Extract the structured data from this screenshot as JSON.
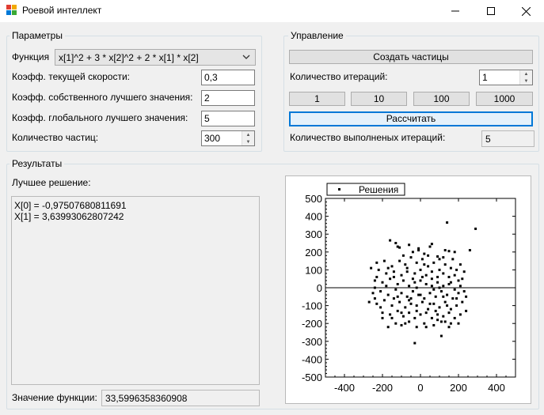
{
  "window": {
    "title": "Роевой интеллект",
    "minimize_icon": "minimize-icon",
    "maximize_icon": "maximize-icon",
    "close_icon": "close-icon"
  },
  "params": {
    "legend": "Параметры",
    "function_label": "Функция",
    "function_value": "x[1]^2 + 3 * x[2]^2 + 2 * x[1] * x[2]",
    "current_speed_label": "Коэфф. текущей скорости:",
    "current_speed_value": "0,3",
    "own_best_label": "Коэфф. собственного лучшего значения:",
    "own_best_value": "2",
    "global_best_label": "Коэфф. глобального лучшего значения:",
    "global_best_value": "5",
    "particles_label": "Количество частиц:",
    "particles_value": "300"
  },
  "control": {
    "legend": "Управление",
    "create_button": "Создать частицы",
    "iterations_label": "Количество итераций:",
    "iterations_value": "1",
    "step_buttons": [
      "1",
      "10",
      "100",
      "1000"
    ],
    "calculate_button": "Рассчитать",
    "done_label": "Количество выполненых итераций:",
    "done_value": "5"
  },
  "results": {
    "legend": "Результаты",
    "best_label": "Лучшее решение:",
    "best_lines": [
      "X[0] = -0,97507680811691",
      "X[1] = 3,63993062807242"
    ],
    "fvalue_label": "Значение функции:",
    "fvalue": "33,5996358360908"
  },
  "chart_data": {
    "type": "scatter",
    "series": [
      {
        "name": "Решения",
        "marker": "square",
        "color": "#000000"
      }
    ],
    "xlim": [
      -500,
      500
    ],
    "ylim": [
      -500,
      500
    ],
    "x_ticks": [
      -400,
      -200,
      0,
      200,
      400
    ],
    "y_ticks": [
      500,
      400,
      300,
      200,
      100,
      0,
      -100,
      -200,
      -300,
      -400,
      -500
    ],
    "x_tick_labels": [
      "-400",
      "-200",
      "0",
      "200",
      "400"
    ],
    "y_tick_labels": [
      "500",
      "400",
      "300",
      "200",
      "100",
      "0",
      "-100",
      "-200",
      "-300",
      "-400",
      "-500"
    ],
    "zero_line": true,
    "grid": false,
    "legend_position": "top-left",
    "points": [
      [
        290,
        330
      ],
      [
        140,
        365
      ],
      [
        260,
        210
      ],
      [
        -160,
        265
      ],
      [
        -130,
        250
      ],
      [
        -110,
        225
      ],
      [
        -60,
        240
      ],
      [
        -40,
        200
      ],
      [
        60,
        245
      ],
      [
        -10,
        210
      ],
      [
        20,
        190
      ],
      [
        90,
        175
      ],
      [
        130,
        210
      ],
      [
        150,
        205
      ],
      [
        180,
        200
      ],
      [
        -230,
        140
      ],
      [
        -190,
        150
      ],
      [
        -150,
        120
      ],
      [
        -110,
        150
      ],
      [
        -80,
        130
      ],
      [
        -50,
        170
      ],
      [
        -20,
        140
      ],
      [
        10,
        160
      ],
      [
        40,
        120
      ],
      [
        70,
        140
      ],
      [
        100,
        160
      ],
      [
        130,
        130
      ],
      [
        160,
        110
      ],
      [
        190,
        100
      ],
      [
        210,
        130
      ],
      [
        230,
        90
      ],
      [
        -260,
        110
      ],
      [
        -220,
        100
      ],
      [
        -180,
        80
      ],
      [
        -140,
        90
      ],
      [
        -100,
        70
      ],
      [
        -70,
        90
      ],
      [
        -30,
        80
      ],
      [
        0,
        100
      ],
      [
        30,
        70
      ],
      [
        60,
        90
      ],
      [
        90,
        60
      ],
      [
        120,
        80
      ],
      [
        150,
        60
      ],
      [
        180,
        70
      ],
      [
        200,
        40
      ],
      [
        -240,
        40
      ],
      [
        -200,
        30
      ],
      [
        -160,
        50
      ],
      [
        -120,
        20
      ],
      [
        -90,
        40
      ],
      [
        -60,
        10
      ],
      [
        -30,
        30
      ],
      [
        0,
        40
      ],
      [
        30,
        20
      ],
      [
        60,
        10
      ],
      [
        90,
        30
      ],
      [
        120,
        10
      ],
      [
        150,
        20
      ],
      [
        180,
        -10
      ],
      [
        -250,
        -30
      ],
      [
        -210,
        -20
      ],
      [
        -170,
        -40
      ],
      [
        -130,
        -10
      ],
      [
        -100,
        -30
      ],
      [
        -70,
        -50
      ],
      [
        -40,
        -20
      ],
      [
        -10,
        -40
      ],
      [
        20,
        -60
      ],
      [
        50,
        -30
      ],
      [
        80,
        -50
      ],
      [
        110,
        -20
      ],
      [
        140,
        -40
      ],
      [
        170,
        -60
      ],
      [
        200,
        -30
      ],
      [
        -270,
        -80
      ],
      [
        -230,
        -90
      ],
      [
        -190,
        -70
      ],
      [
        -150,
        -100
      ],
      [
        -110,
        -80
      ],
      [
        -80,
        -110
      ],
      [
        -50,
        -90
      ],
      [
        -20,
        -100
      ],
      [
        10,
        -80
      ],
      [
        40,
        -120
      ],
      [
        70,
        -90
      ],
      [
        100,
        -110
      ],
      [
        130,
        -80
      ],
      [
        160,
        -120
      ],
      [
        190,
        -100
      ],
      [
        220,
        -80
      ],
      [
        -200,
        -140
      ],
      [
        -160,
        -150
      ],
      [
        -120,
        -130
      ],
      [
        -90,
        -160
      ],
      [
        -60,
        -140
      ],
      [
        -30,
        -170
      ],
      [
        0,
        -150
      ],
      [
        30,
        -140
      ],
      [
        60,
        -170
      ],
      [
        90,
        -150
      ],
      [
        120,
        -160
      ],
      [
        150,
        -140
      ],
      [
        180,
        -170
      ],
      [
        210,
        -150
      ],
      [
        -170,
        -220
      ],
      [
        -130,
        -200
      ],
      [
        -100,
        -210
      ],
      [
        -60,
        -190
      ],
      [
        -20,
        -220
      ],
      [
        20,
        -200
      ],
      [
        70,
        -210
      ],
      [
        110,
        -190
      ],
      [
        150,
        -220
      ],
      [
        200,
        -200
      ],
      [
        -30,
        -310
      ],
      [
        110,
        -270
      ],
      [
        -240,
        0
      ],
      [
        -210,
        -110
      ],
      [
        -140,
        60
      ],
      [
        -50,
        -60
      ],
      [
        10,
        60
      ],
      [
        70,
        -10
      ],
      [
        120,
        -50
      ],
      [
        160,
        30
      ],
      [
        220,
        50
      ],
      [
        240,
        -50
      ],
      [
        -120,
        -50
      ],
      [
        -170,
        110
      ],
      [
        40,
        180
      ],
      [
        100,
        100
      ],
      [
        -80,
        -200
      ],
      [
        130,
        -190
      ],
      [
        240,
        -130
      ],
      [
        -20,
        -130
      ],
      [
        80,
        -130
      ],
      [
        50,
        230
      ],
      [
        -90,
        180
      ],
      [
        170,
        160
      ],
      [
        -200,
        -170
      ],
      [
        -240,
        -60
      ],
      [
        210,
        10
      ],
      [
        0,
        -40
      ],
      [
        -40,
        50
      ],
      [
        160,
        -200
      ],
      [
        -120,
        230
      ],
      [
        30,
        -220
      ],
      [
        -70,
        110
      ],
      [
        120,
        170
      ],
      [
        -150,
        -170
      ],
      [
        190,
        -60
      ],
      [
        -230,
        60
      ],
      [
        90,
        -180
      ],
      [
        -10,
        220
      ],
      [
        60,
        50
      ],
      [
        -180,
        10
      ],
      [
        140,
        -100
      ],
      [
        -100,
        -140
      ],
      [
        20,
        130
      ],
      [
        230,
        -20
      ],
      [
        -60,
        -70
      ],
      [
        100,
        0
      ],
      [
        -140,
        -60
      ],
      [
        50,
        -90
      ],
      [
        -20,
        0
      ]
    ]
  }
}
